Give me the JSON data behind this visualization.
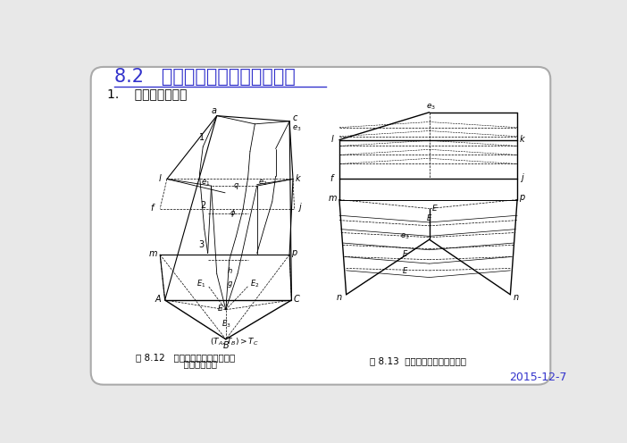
{
  "title": "8.2   固态不溶解的三元共晶相图",
  "subtitle": "1.    相图的空间模型",
  "fig_caption1_line1": "图 8.12   组元在固态完全不互溶的",
  "fig_caption1_line2": "          三元共晶相图",
  "fig_caption2": "图 8.13  三相平衡区和两相共晶面",
  "date": "2015-12-7",
  "bg_color": "#e8e8e8",
  "inner_bg": "#ffffff",
  "title_color": "#3333cc",
  "date_color": "#3333cc",
  "title_fontsize": 15,
  "subtitle_fontsize": 10,
  "caption_fontsize": 7.5,
  "date_fontsize": 9
}
